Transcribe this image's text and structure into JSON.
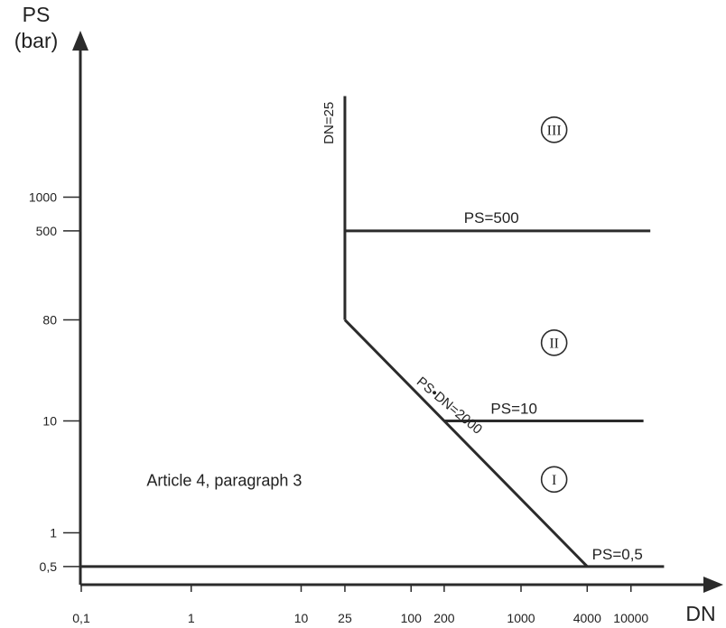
{
  "chart_data": {
    "type": "line",
    "title": "",
    "xlabel": "DN",
    "ylabel_line1": "PS",
    "ylabel_line2": "(bar)",
    "x_ticks": [
      "0,1",
      "1",
      "10",
      "25",
      "100",
      "200",
      "1000",
      "4000",
      "10000"
    ],
    "y_ticks": [
      "0,5",
      "1",
      "10",
      "80",
      "500",
      "1000"
    ],
    "x_scale": "log",
    "y_scale": "log",
    "boundaries": [
      {
        "name": "DN=25",
        "label": "DN=25",
        "points": [
          [
            25,
            80
          ],
          [
            25,
            8000
          ]
        ]
      },
      {
        "name": "PS=500",
        "label": "PS=500",
        "points": [
          [
            25,
            500
          ],
          [
            15000,
            500
          ]
        ]
      },
      {
        "name": "PS·DN=2000",
        "label": "PS•DN=2000",
        "points": [
          [
            25,
            80
          ],
          [
            4000,
            0.5
          ]
        ]
      },
      {
        "name": "PS=10",
        "label": "PS=10",
        "points": [
          [
            200,
            10
          ],
          [
            13000,
            10
          ]
        ]
      },
      {
        "name": "PS=0,5",
        "label": "PS=0,5",
        "points": [
          [
            0.1,
            0.5
          ],
          [
            20000,
            0.5
          ]
        ]
      }
    ],
    "regions": [
      {
        "label": "III",
        "x": 2000,
        "y": 4000
      },
      {
        "label": "II",
        "x": 2000,
        "y": 50
      },
      {
        "label": "I",
        "x": 2000,
        "y": 3
      }
    ],
    "annotation": {
      "text": "Article 4, paragraph 3",
      "x": 2,
      "y": 3
    }
  }
}
